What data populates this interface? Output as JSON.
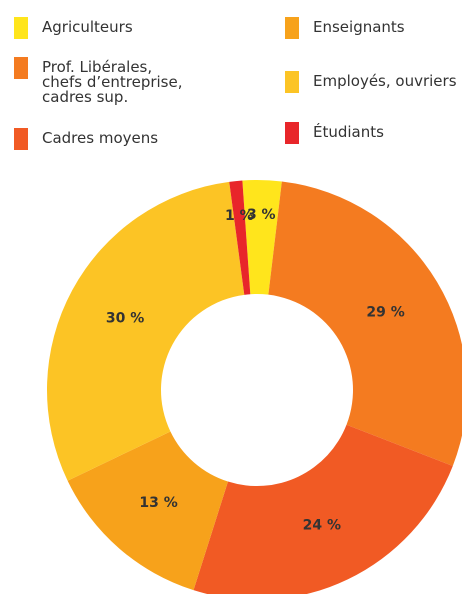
{
  "chart_data": {
    "type": "donut",
    "categories": [
      "Agriculteurs",
      "Prof. Libérales,\nchefs d’entreprise,\ncadres sup.",
      "Cadres moyens",
      "Enseignants",
      "Employés, ouvriers",
      "Étudiants"
    ],
    "values": [
      3,
      29,
      24,
      13,
      30,
      1
    ],
    "value_labels": [
      "3 %",
      "29 %",
      "24 %",
      "13 %",
      "30 %",
      "1 %"
    ],
    "colors": [
      "#ffe51c",
      "#f47b20",
      "#f15a24",
      "#f7a21b",
      "#fcc425",
      "#e8262a"
    ]
  }
}
